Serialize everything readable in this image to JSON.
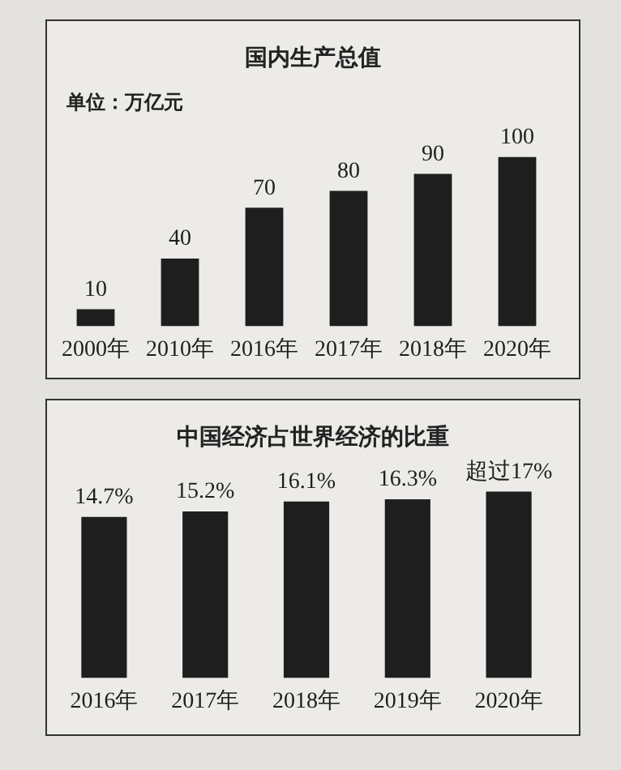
{
  "chart_data": [
    {
      "type": "bar",
      "title": "国内生产总值",
      "ylabel": "单位：万亿元",
      "categories": [
        "2000年",
        "2010年",
        "2016年",
        "2017年",
        "2018年",
        "2020年"
      ],
      "values": [
        10,
        40,
        70,
        80,
        90,
        100
      ],
      "color": "#1e1e1e",
      "tick_labels": "x",
      "data_labels": true,
      "grid": false,
      "legend": false
    },
    {
      "type": "bar",
      "title": "中国经济占世界经济的比重",
      "categories": [
        "2016年",
        "2017年",
        "2018年",
        "2019年",
        "2020年"
      ],
      "values": [
        14.7,
        15.2,
        16.1,
        16.3,
        17
      ],
      "value_labels": [
        "14.7%",
        "15.2%",
        "16.1%",
        "16.3%",
        "超过17%"
      ],
      "color": "#1e1e1e",
      "tick_labels": "x",
      "grid": false,
      "legend": false
    }
  ]
}
